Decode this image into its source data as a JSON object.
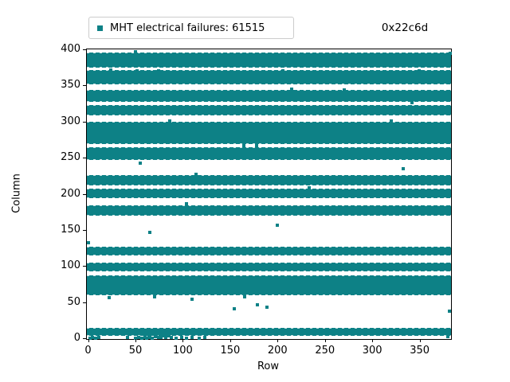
{
  "legend": {
    "label": "MHT electrical failures: 61515",
    "marker_color": "#0d8186"
  },
  "annotation": "0x22c6d",
  "axes": {
    "xlabel": "Row",
    "ylabel": "Column"
  },
  "chart_data": {
    "type": "scatter",
    "title": "0x22c6d",
    "legend_entries": [
      "MHT electrical failures: 61515"
    ],
    "failure_count": 61515,
    "xlabel": "Row",
    "ylabel": "Column",
    "xlim": [
      0,
      383
    ],
    "ylim": [
      0,
      402
    ],
    "x_ticks": [
      0,
      50,
      100,
      150,
      200,
      250,
      300,
      350
    ],
    "y_ticks": [
      0,
      50,
      100,
      150,
      200,
      250,
      300,
      350,
      400
    ],
    "grid": false,
    "legend_position": "upper left",
    "marker_color": "#0d8186",
    "marker_shape": "square",
    "dense_bands_column_ranges": [
      [
        3,
        14.5
      ],
      [
        60,
        87.5
      ],
      [
        92,
        104.5
      ],
      [
        114,
        127
      ],
      [
        170,
        184
      ],
      [
        194,
        207.5
      ],
      [
        211,
        226
      ],
      [
        247,
        264.5
      ],
      [
        269,
        299.5
      ],
      [
        308,
        322.5
      ],
      [
        327.5,
        343.5
      ],
      [
        351,
        371.5
      ],
      [
        375,
        395.5
      ]
    ],
    "isolated_points_row_col": [
      [
        50,
        397
      ],
      [
        382,
        394
      ],
      [
        24,
        371
      ],
      [
        52,
        370
      ],
      [
        74,
        370
      ],
      [
        206,
        370
      ],
      [
        349,
        370
      ],
      [
        215,
        345
      ],
      [
        270,
        344
      ],
      [
        342,
        326
      ],
      [
        86,
        301
      ],
      [
        320,
        301
      ],
      [
        164,
        267
      ],
      [
        178,
        267
      ],
      [
        55,
        243
      ],
      [
        333,
        235
      ],
      [
        114,
        227
      ],
      [
        233,
        208
      ],
      [
        104,
        186
      ],
      [
        200,
        156
      ],
      [
        65,
        147
      ],
      [
        0,
        132
      ],
      [
        22,
        56
      ],
      [
        70,
        57
      ],
      [
        110,
        54
      ],
      [
        165,
        57
      ],
      [
        154,
        41
      ],
      [
        179,
        46
      ],
      [
        189,
        43
      ],
      [
        381,
        37
      ],
      [
        380,
        2
      ],
      [
        60,
        4
      ],
      [
        64,
        5
      ],
      [
        68,
        6
      ],
      [
        72,
        5
      ],
      [
        76,
        4
      ],
      [
        80,
        3
      ],
      [
        85,
        3
      ],
      [
        2,
        0
      ],
      [
        5,
        1
      ],
      [
        8,
        0
      ],
      [
        11,
        1
      ],
      [
        42,
        1
      ],
      [
        50,
        0
      ],
      [
        53,
        1
      ],
      [
        57,
        0
      ],
      [
        60,
        1
      ],
      [
        62,
        0
      ],
      [
        65,
        1
      ],
      [
        68,
        0
      ],
      [
        71,
        2
      ],
      [
        74,
        1
      ],
      [
        77,
        1
      ],
      [
        82,
        1
      ],
      [
        88,
        1
      ],
      [
        93,
        0
      ],
      [
        99,
        1
      ],
      [
        104,
        0
      ],
      [
        110,
        1
      ],
      [
        117,
        0
      ],
      [
        123,
        1
      ]
    ]
  }
}
